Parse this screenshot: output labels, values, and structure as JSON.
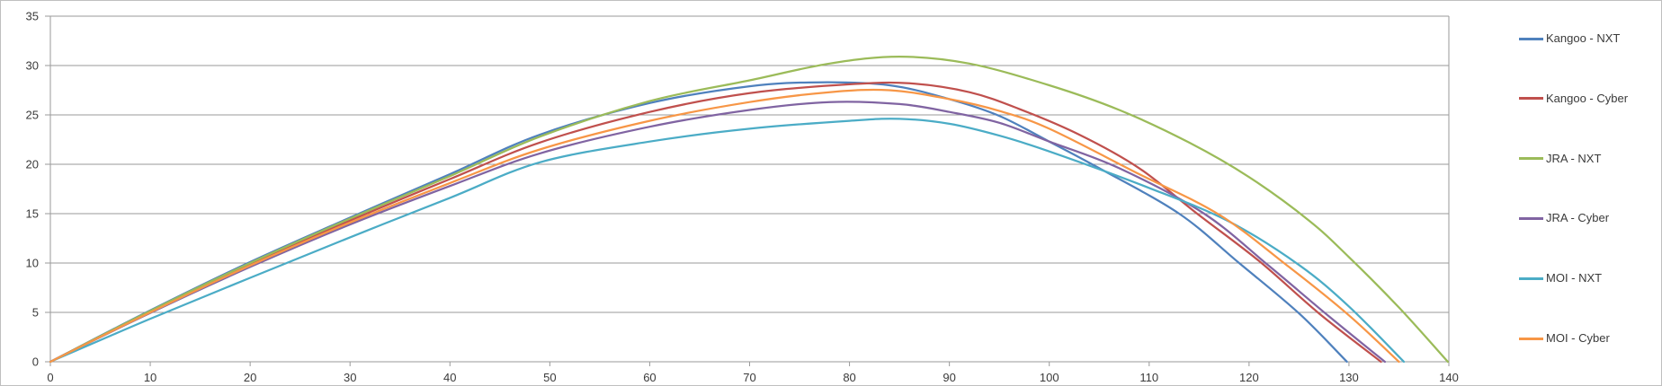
{
  "chart_data": {
    "type": "line",
    "title": "",
    "xlabel": "",
    "ylabel": "",
    "xlim": [
      0,
      140
    ],
    "ylim": [
      0,
      35
    ],
    "x_ticks": [
      0,
      10,
      20,
      30,
      40,
      50,
      60,
      70,
      80,
      90,
      100,
      110,
      120,
      130,
      140
    ],
    "y_ticks": [
      0,
      5,
      10,
      15,
      20,
      25,
      30,
      35
    ],
    "grid": "horizontal",
    "legend_position": "right",
    "series": [
      {
        "name": "Kangoo - NXT",
        "color": "#4F81BD",
        "points": [
          [
            0,
            0
          ],
          [
            10,
            5.2
          ],
          [
            20,
            10.1
          ],
          [
            30,
            14.6
          ],
          [
            40,
            19.0
          ],
          [
            49,
            23.0
          ],
          [
            60,
            26.2
          ],
          [
            70,
            27.9
          ],
          [
            77,
            28.3
          ],
          [
            84,
            28.0
          ],
          [
            90,
            26.6
          ],
          [
            95,
            24.9
          ],
          [
            100,
            22.3
          ],
          [
            105,
            19.6
          ],
          [
            113,
            15.0
          ],
          [
            119,
            10.0
          ],
          [
            125,
            4.9
          ],
          [
            129.8,
            0
          ]
        ]
      },
      {
        "name": "Kangoo - Cyber",
        "color": "#C0504D",
        "points": [
          [
            0,
            0
          ],
          [
            10,
            5.1
          ],
          [
            20,
            9.9
          ],
          [
            30,
            14.3
          ],
          [
            40,
            18.5
          ],
          [
            49,
            22.2
          ],
          [
            60,
            25.3
          ],
          [
            70,
            27.2
          ],
          [
            80,
            28.1
          ],
          [
            86,
            28.2
          ],
          [
            92,
            27.3
          ],
          [
            97,
            25.6
          ],
          [
            103,
            23.0
          ],
          [
            109,
            19.6
          ],
          [
            114.8,
            15.0
          ],
          [
            121,
            10.2
          ],
          [
            127,
            4.9
          ],
          [
            133.2,
            0
          ]
        ]
      },
      {
        "name": "JRA - NXT",
        "color": "#9BBB59",
        "points": [
          [
            0,
            0
          ],
          [
            10,
            5.15
          ],
          [
            20,
            10.0
          ],
          [
            30,
            14.5
          ],
          [
            40,
            18.8
          ],
          [
            49,
            22.8
          ],
          [
            60,
            26.4
          ],
          [
            70,
            28.5
          ],
          [
            78,
            30.2
          ],
          [
            85,
            30.9
          ],
          [
            92,
            30.2
          ],
          [
            100,
            28.0
          ],
          [
            107,
            25.5
          ],
          [
            114,
            22.2
          ],
          [
            120,
            18.7
          ],
          [
            126,
            14.3
          ],
          [
            130,
            10.6
          ],
          [
            135,
            5.5
          ],
          [
            139.9,
            0
          ]
        ]
      },
      {
        "name": "JRA - Cyber",
        "color": "#8064A2",
        "points": [
          [
            0,
            0
          ],
          [
            10,
            4.95
          ],
          [
            20,
            9.6
          ],
          [
            30,
            13.9
          ],
          [
            40,
            17.8
          ],
          [
            49,
            21.1
          ],
          [
            60,
            23.8
          ],
          [
            70,
            25.5
          ],
          [
            78,
            26.3
          ],
          [
            85,
            26.1
          ],
          [
            90,
            25.3
          ],
          [
            95,
            24.2
          ],
          [
            100,
            22.3
          ],
          [
            107,
            19.6
          ],
          [
            115.5,
            15.0
          ],
          [
            122,
            9.7
          ],
          [
            128,
            4.6
          ],
          [
            133.6,
            0
          ]
        ]
      },
      {
        "name": "MOI - NXT",
        "color": "#4BACC6",
        "points": [
          [
            0,
            0
          ],
          [
            10,
            4.35
          ],
          [
            20,
            8.5
          ],
          [
            30,
            12.6
          ],
          [
            40,
            16.6
          ],
          [
            49,
            20.2
          ],
          [
            60,
            22.3
          ],
          [
            70,
            23.6
          ],
          [
            80,
            24.4
          ],
          [
            85,
            24.6
          ],
          [
            90,
            24.1
          ],
          [
            95,
            22.9
          ],
          [
            100,
            21.3
          ],
          [
            110,
            17.6
          ],
          [
            118,
            14.2
          ],
          [
            125,
            9.8
          ],
          [
            130,
            5.6
          ],
          [
            135.5,
            0
          ]
        ]
      },
      {
        "name": "MOI - Cyber",
        "color": "#F79646",
        "points": [
          [
            0,
            0
          ],
          [
            10,
            5.0
          ],
          [
            20,
            9.75
          ],
          [
            30,
            14.1
          ],
          [
            40,
            18.1
          ],
          [
            49,
            21.5
          ],
          [
            60,
            24.4
          ],
          [
            70,
            26.3
          ],
          [
            78,
            27.3
          ],
          [
            84,
            27.5
          ],
          [
            90,
            26.6
          ],
          [
            95,
            25.4
          ],
          [
            100,
            23.6
          ],
          [
            109,
            19.0
          ],
          [
            117,
            14.9
          ],
          [
            124,
            9.6
          ],
          [
            130,
            4.7
          ],
          [
            135,
            0
          ]
        ]
      }
    ]
  },
  "colors": {
    "gridline": "#9a9a9a",
    "axis": "#9a9a9a",
    "tick_text": "#3a3a3a",
    "chart_border": "#bfbfbf",
    "background": "#ffffff"
  }
}
